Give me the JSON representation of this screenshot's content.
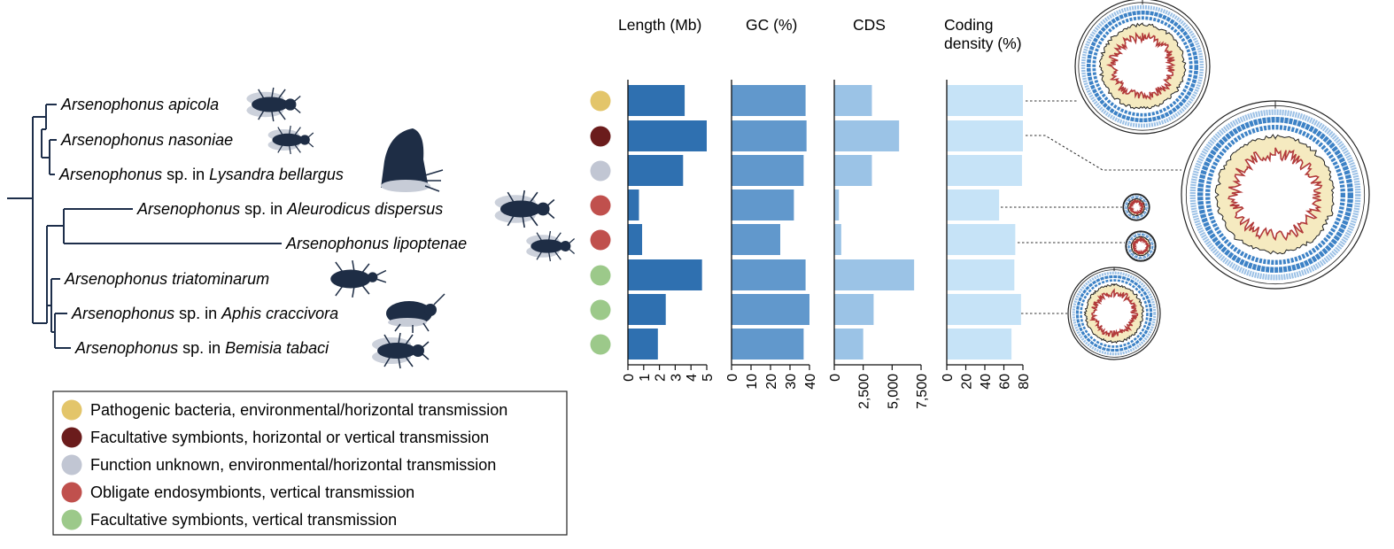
{
  "colors": {
    "tree": "#1d2e4a",
    "insect": "#1e2d45",
    "insect_light": "#c7ccd7",
    "length": "#2f70b0",
    "gc": "#6198cc",
    "cds": "#9bc3e6",
    "coding": "#c6e3f7",
    "ring_blue": "#3d82c6",
    "ring_light": "#9cc1e6",
    "ring_red": "#b23a3a",
    "ring_yellow": "#e2c24a",
    "ring_gray": "#a7a9ad"
  },
  "taxa": [
    {
      "pre": "Arsenophonus apicola",
      "mid": "",
      "post": "",
      "category": "pathogenic"
    },
    {
      "pre": "Arsenophonus nasoniae",
      "mid": "",
      "post": "",
      "category": "facultative_hv"
    },
    {
      "pre": "Arsenophonus",
      "mid": " sp. in ",
      "post": "Lysandra bellargus",
      "category": "unknown"
    },
    {
      "pre": "Arsenophonus",
      "mid": " sp. in ",
      "post": "Aleurodicus dispersus",
      "category": "obligate"
    },
    {
      "pre": "Arsenophonus lipoptenae",
      "mid": "",
      "post": "",
      "category": "obligate"
    },
    {
      "pre": "Arsenophonus triatominarum",
      "mid": "",
      "post": "",
      "category": "facultative_v"
    },
    {
      "pre": "Arsenophonus",
      "mid": " sp. in ",
      "post": "Aphis craccivora",
      "category": "facultative_v"
    },
    {
      "pre": "Arsenophonus",
      "mid": " sp. in ",
      "post": "Bemisia tabaci",
      "category": "facultative_v"
    }
  ],
  "insect_icons": [
    "bee-icon",
    "wasp-icon",
    "butterfly-icon",
    "whitefly-icon",
    "louse-fly-icon",
    "kissing-bug-icon",
    "aphid-icon",
    "whitefly-icon"
  ],
  "legend": [
    {
      "key": "pathogenic",
      "label": "Pathogenic bacteria, environmental/horizontal transmission",
      "color": "#e3c56a"
    },
    {
      "key": "facultative_hv",
      "label": "Facultative symbionts, horizontal or vertical transmission",
      "color": "#6b1c1c"
    },
    {
      "key": "unknown",
      "label": "Function unknown, environmental/horizontal transmission",
      "color": "#c1c6d3"
    },
    {
      "key": "obligate",
      "label": "Obligate endosymbionts, vertical transmission",
      "color": "#c0504d"
    },
    {
      "key": "facultative_v",
      "label": "Facultative  symbionts, vertical transmission",
      "color": "#9cc98a"
    }
  ],
  "chart_data": [
    {
      "type": "bar",
      "orientation": "horizontal",
      "title": "Length (Mb)",
      "xlim": [
        0,
        5
      ],
      "ticks": [
        "0",
        "1",
        "2",
        "3",
        "4",
        "5"
      ],
      "tick_values": [
        0,
        1,
        2,
        3,
        4,
        5
      ],
      "values": [
        3.6,
        5.0,
        3.5,
        0.7,
        0.9,
        4.7,
        2.4,
        1.9
      ]
    },
    {
      "type": "bar",
      "orientation": "horizontal",
      "title": "GC (%)",
      "xlim": [
        0,
        40
      ],
      "ticks": [
        "0",
        "10",
        "20",
        "30",
        "40"
      ],
      "tick_values": [
        0,
        10,
        20,
        30,
        40
      ],
      "values": [
        38,
        38.5,
        37,
        32,
        25,
        38,
        40,
        37
      ]
    },
    {
      "type": "bar",
      "orientation": "horizontal",
      "title": "CDS",
      "xlim": [
        0,
        7500
      ],
      "ticks": [
        "0",
        "2,500",
        "5,000",
        "7,500"
      ],
      "tick_values": [
        0,
        2500,
        5000,
        7500
      ],
      "values": [
        3250,
        5600,
        3250,
        400,
        600,
        6900,
        3400,
        2500
      ]
    },
    {
      "type": "bar",
      "orientation": "horizontal",
      "title": "Coding\ndensity (%)",
      "xlim": [
        0,
        80
      ],
      "ticks": [
        "0",
        "20",
        "40",
        "60",
        "80"
      ],
      "tick_values": [
        0,
        20,
        40,
        60,
        80
      ],
      "values": [
        80,
        80,
        79,
        55,
        72,
        71,
        78,
        68
      ]
    }
  ]
}
